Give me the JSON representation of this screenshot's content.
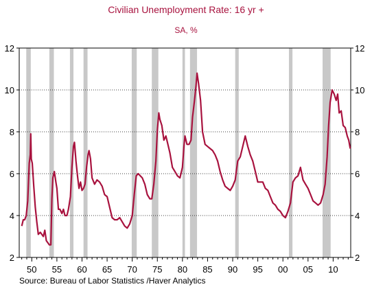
{
  "chart_data": {
    "type": "line",
    "title": "Civilian Unemployment Rate: 16 yr +",
    "subtitle": "SA, %",
    "source": "Source:  Bureau of Labor Statistics /Haver Analytics",
    "xlim": [
      1947.5,
      2013.5
    ],
    "ylim": [
      2,
      12
    ],
    "y_ticks": [
      2,
      4,
      6,
      8,
      10,
      12
    ],
    "x_ticks": [
      {
        "year": 1950,
        "label": "50"
      },
      {
        "year": 1955,
        "label": "55"
      },
      {
        "year": 1960,
        "label": "60"
      },
      {
        "year": 1965,
        "label": "65"
      },
      {
        "year": 1970,
        "label": "70"
      },
      {
        "year": 1975,
        "label": "75"
      },
      {
        "year": 1980,
        "label": "80"
      },
      {
        "year": 1985,
        "label": "85"
      },
      {
        "year": 1990,
        "label": "90"
      },
      {
        "year": 1995,
        "label": "95"
      },
      {
        "year": 2000,
        "label": "00"
      },
      {
        "year": 2005,
        "label": "05"
      },
      {
        "year": 2010,
        "label": "10"
      }
    ],
    "grid": "horizontal dotted",
    "line_color": "#a8123e",
    "recession_color": "#c8c8c8",
    "recessions": [
      [
        1948.9,
        1949.8
      ],
      [
        1953.5,
        1954.4
      ],
      [
        1957.6,
        1958.3
      ],
      [
        1960.3,
        1961.1
      ],
      [
        1969.9,
        1970.9
      ],
      [
        1973.9,
        1975.2
      ],
      [
        1980.0,
        1980.5
      ],
      [
        1981.5,
        1982.9
      ],
      [
        1990.5,
        1991.2
      ],
      [
        2001.2,
        2001.9
      ],
      [
        2007.9,
        2009.5
      ]
    ],
    "series": [
      {
        "values": [
          [
            1948.0,
            3.5
          ],
          [
            1948.3,
            3.8
          ],
          [
            1948.6,
            3.8
          ],
          [
            1948.9,
            4.0
          ],
          [
            1949.2,
            4.7
          ],
          [
            1949.5,
            6.5
          ],
          [
            1949.7,
            6.9
          ],
          [
            1949.8,
            7.9
          ],
          [
            1949.9,
            6.7
          ],
          [
            1950.1,
            6.5
          ],
          [
            1950.4,
            5.4
          ],
          [
            1950.7,
            4.4
          ],
          [
            1951.0,
            3.7
          ],
          [
            1951.3,
            3.1
          ],
          [
            1951.7,
            3.2
          ],
          [
            1952.0,
            3.1
          ],
          [
            1952.3,
            3.0
          ],
          [
            1952.6,
            3.3
          ],
          [
            1952.9,
            2.8
          ],
          [
            1953.2,
            2.7
          ],
          [
            1953.5,
            2.6
          ],
          [
            1953.8,
            2.6
          ],
          [
            1954.0,
            4.8
          ],
          [
            1954.2,
            5.8
          ],
          [
            1954.5,
            6.1
          ],
          [
            1954.8,
            5.6
          ],
          [
            1955.0,
            5.3
          ],
          [
            1955.3,
            4.3
          ],
          [
            1955.6,
            4.3
          ],
          [
            1956.0,
            4.1
          ],
          [
            1956.3,
            4.3
          ],
          [
            1956.6,
            4.0
          ],
          [
            1957.0,
            4.0
          ],
          [
            1957.3,
            4.3
          ],
          [
            1957.7,
            4.9
          ],
          [
            1958.0,
            6.3
          ],
          [
            1958.3,
            7.3
          ],
          [
            1958.5,
            7.5
          ],
          [
            1958.8,
            6.6
          ],
          [
            1959.1,
            5.9
          ],
          [
            1959.4,
            5.3
          ],
          [
            1959.7,
            5.6
          ],
          [
            1960.0,
            5.2
          ],
          [
            1960.3,
            5.3
          ],
          [
            1960.6,
            5.5
          ],
          [
            1960.9,
            6.3
          ],
          [
            1961.2,
            6.9
          ],
          [
            1961.4,
            7.1
          ],
          [
            1961.7,
            6.7
          ],
          [
            1962.0,
            5.8
          ],
          [
            1962.5,
            5.5
          ],
          [
            1963.0,
            5.7
          ],
          [
            1963.5,
            5.6
          ],
          [
            1964.0,
            5.4
          ],
          [
            1964.5,
            5.0
          ],
          [
            1965.0,
            4.9
          ],
          [
            1965.5,
            4.4
          ],
          [
            1966.0,
            3.9
          ],
          [
            1966.5,
            3.8
          ],
          [
            1967.0,
            3.8
          ],
          [
            1967.5,
            3.9
          ],
          [
            1968.0,
            3.7
          ],
          [
            1968.5,
            3.5
          ],
          [
            1969.0,
            3.4
          ],
          [
            1969.5,
            3.6
          ],
          [
            1970.0,
            4.0
          ],
          [
            1970.4,
            5.0
          ],
          [
            1970.8,
            5.9
          ],
          [
            1971.2,
            6.0
          ],
          [
            1971.6,
            5.9
          ],
          [
            1972.0,
            5.8
          ],
          [
            1972.5,
            5.5
          ],
          [
            1973.0,
            5.0
          ],
          [
            1973.5,
            4.8
          ],
          [
            1973.9,
            4.8
          ],
          [
            1974.3,
            5.5
          ],
          [
            1974.7,
            6.6
          ],
          [
            1975.0,
            8.1
          ],
          [
            1975.3,
            8.9
          ],
          [
            1975.5,
            8.6
          ],
          [
            1975.9,
            8.3
          ],
          [
            1976.3,
            7.6
          ],
          [
            1976.7,
            7.8
          ],
          [
            1977.0,
            7.5
          ],
          [
            1977.5,
            7.0
          ],
          [
            1978.0,
            6.3
          ],
          [
            1978.5,
            6.1
          ],
          [
            1979.0,
            5.9
          ],
          [
            1979.5,
            5.8
          ],
          [
            1980.0,
            6.3
          ],
          [
            1980.3,
            7.3
          ],
          [
            1980.5,
            7.8
          ],
          [
            1980.9,
            7.4
          ],
          [
            1981.3,
            7.4
          ],
          [
            1981.7,
            7.6
          ],
          [
            1982.0,
            8.7
          ],
          [
            1982.4,
            9.5
          ],
          [
            1982.7,
            10.2
          ],
          [
            1982.9,
            10.8
          ],
          [
            1983.2,
            10.3
          ],
          [
            1983.6,
            9.5
          ],
          [
            1984.0,
            8.0
          ],
          [
            1984.5,
            7.4
          ],
          [
            1985.0,
            7.3
          ],
          [
            1985.5,
            7.2
          ],
          [
            1986.0,
            7.1
          ],
          [
            1986.5,
            6.9
          ],
          [
            1987.0,
            6.6
          ],
          [
            1987.5,
            6.1
          ],
          [
            1988.0,
            5.7
          ],
          [
            1988.5,
            5.4
          ],
          [
            1989.0,
            5.3
          ],
          [
            1989.5,
            5.2
          ],
          [
            1990.0,
            5.4
          ],
          [
            1990.5,
            5.7
          ],
          [
            1991.0,
            6.6
          ],
          [
            1991.5,
            6.8
          ],
          [
            1992.0,
            7.3
          ],
          [
            1992.5,
            7.8
          ],
          [
            1993.0,
            7.3
          ],
          [
            1993.5,
            6.9
          ],
          [
            1994.0,
            6.6
          ],
          [
            1994.5,
            6.1
          ],
          [
            1995.0,
            5.6
          ],
          [
            1995.5,
            5.6
          ],
          [
            1996.0,
            5.6
          ],
          [
            1996.5,
            5.3
          ],
          [
            1997.0,
            5.2
          ],
          [
            1997.5,
            4.9
          ],
          [
            1998.0,
            4.6
          ],
          [
            1998.5,
            4.5
          ],
          [
            1999.0,
            4.3
          ],
          [
            1999.5,
            4.2
          ],
          [
            2000.0,
            4.0
          ],
          [
            2000.5,
            3.9
          ],
          [
            2001.0,
            4.2
          ],
          [
            2001.5,
            4.6
          ],
          [
            2002.0,
            5.6
          ],
          [
            2002.5,
            5.8
          ],
          [
            2003.0,
            5.9
          ],
          [
            2003.5,
            6.3
          ],
          [
            2004.0,
            5.7
          ],
          [
            2004.5,
            5.5
          ],
          [
            2005.0,
            5.3
          ],
          [
            2005.5,
            5.0
          ],
          [
            2006.0,
            4.7
          ],
          [
            2006.5,
            4.6
          ],
          [
            2007.0,
            4.5
          ],
          [
            2007.5,
            4.6
          ],
          [
            2008.0,
            5.0
          ],
          [
            2008.4,
            5.5
          ],
          [
            2008.8,
            6.8
          ],
          [
            2009.1,
            8.3
          ],
          [
            2009.4,
            9.4
          ],
          [
            2009.8,
            10.0
          ],
          [
            2010.2,
            9.8
          ],
          [
            2010.6,
            9.5
          ],
          [
            2010.9,
            9.8
          ],
          [
            2011.2,
            8.9
          ],
          [
            2011.6,
            9.0
          ],
          [
            2012.0,
            8.3
          ],
          [
            2012.4,
            8.2
          ],
          [
            2012.8,
            7.8
          ],
          [
            2013.1,
            7.6
          ],
          [
            2013.4,
            7.2
          ]
        ]
      }
    ]
  }
}
